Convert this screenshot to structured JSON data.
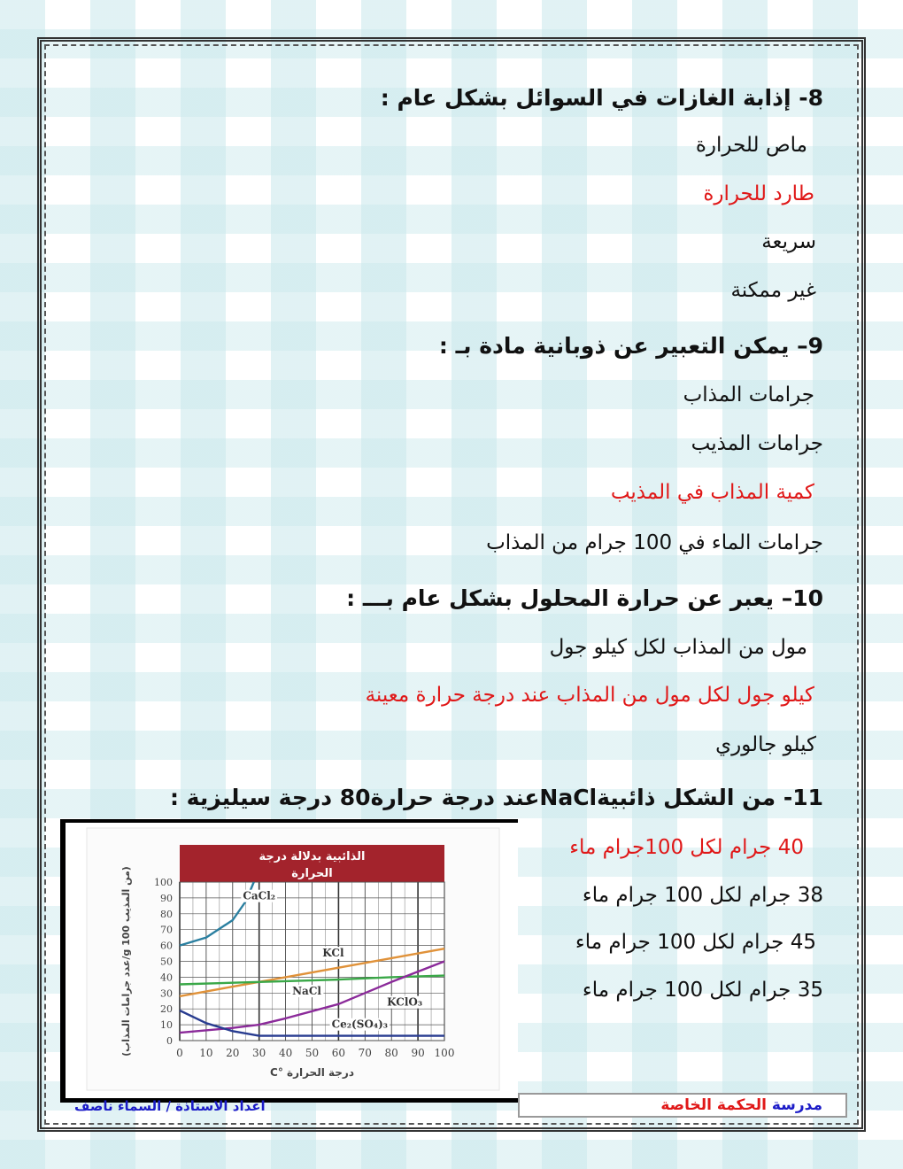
{
  "questions": [
    {
      "title": "8- إذابة الغازات في السوائل بشكل عام :",
      "options": [
        "ماص للحرارة",
        "طارد للحرارة",
        "سريعة",
        "غير ممكنة"
      ],
      "correct": 1
    },
    {
      "title": "9– يمكن التعبير عن ذوبانية مادة بـ :",
      "options": [
        "جرامات المذاب",
        "جرامات المذيب",
        "كمية المذاب في المذيب",
        "جرامات الماء في 100 جرام من المذاب"
      ],
      "correct": 2
    },
    {
      "title": "10– يعبر عن حرارة المحلول بشكل عام بـــ :",
      "options": [
        "مول من المذاب لكل كيلو جول",
        "كيلو جول لكل مول من المذاب عند درجة حرارة معينة",
        "كيلو جالوري"
      ],
      "correct": 1
    },
    {
      "title": "11- من الشكل ذائبيةNaClعند درجة حرارة80 درجة سيليزية :",
      "options": [
        "40 جرام لكل 100جرام ماء",
        "38 جرام لكل 100 جرام ماء",
        "45 جرام لكل 100 جرام ماء",
        "35 جرام لكل 100 جرام ماء"
      ],
      "correct": 0
    }
  ],
  "footer": {
    "school_prefix": "مدرسة",
    "school_name": "الحكمة الخاصة",
    "author": "اعداد الاستاذة / السماء ناصف"
  },
  "colors": {
    "correct": "#e01818",
    "chart_header": "#a3232c"
  },
  "chart_data": {
    "type": "line",
    "title": "الذائبية بدلالة درجة الحرارة",
    "xlabel": "درجة الحرارة °C",
    "ylabel": "(عدد جرامات المذاب/g 100 من المذيب)",
    "xlim": [
      0,
      100
    ],
    "ylim": [
      0,
      100
    ],
    "xticks": [
      0,
      10,
      20,
      30,
      40,
      50,
      60,
      70,
      80,
      90,
      100
    ],
    "yticks": [
      0,
      10,
      20,
      30,
      40,
      50,
      60,
      70,
      80,
      90,
      100
    ],
    "grid": true,
    "series": [
      {
        "name": "CaCl2",
        "label": "CaCl₂",
        "color": "#2a7fa0",
        "x": [
          0,
          10,
          20,
          25,
          28
        ],
        "y": [
          60,
          65,
          76,
          88,
          100
        ]
      },
      {
        "name": "KCl",
        "label": "KCl",
        "color": "#e0923a",
        "x": [
          0,
          20,
          40,
          60,
          80,
          100
        ],
        "y": [
          28,
          34,
          40,
          46,
          52,
          58
        ]
      },
      {
        "name": "NaCl",
        "label": "NaCl",
        "color": "#3aa848",
        "x": [
          0,
          20,
          40,
          60,
          80,
          100
        ],
        "y": [
          35.5,
          36.5,
          37.5,
          38.5,
          40,
          41
        ]
      },
      {
        "name": "KClO3",
        "label": "KClO₃",
        "color": "#8b2a9a",
        "x": [
          0,
          20,
          30,
          40,
          60,
          80,
          100
        ],
        "y": [
          5,
          8,
          10,
          14,
          23,
          37,
          50
        ]
      },
      {
        "name": "Ce2(SO4)3",
        "label": "Ce₂(SO₄)₃",
        "color": "#283c90",
        "x": [
          0,
          10,
          20,
          30,
          50,
          100
        ],
        "y": [
          19,
          11,
          6,
          3,
          3,
          3
        ]
      }
    ]
  }
}
